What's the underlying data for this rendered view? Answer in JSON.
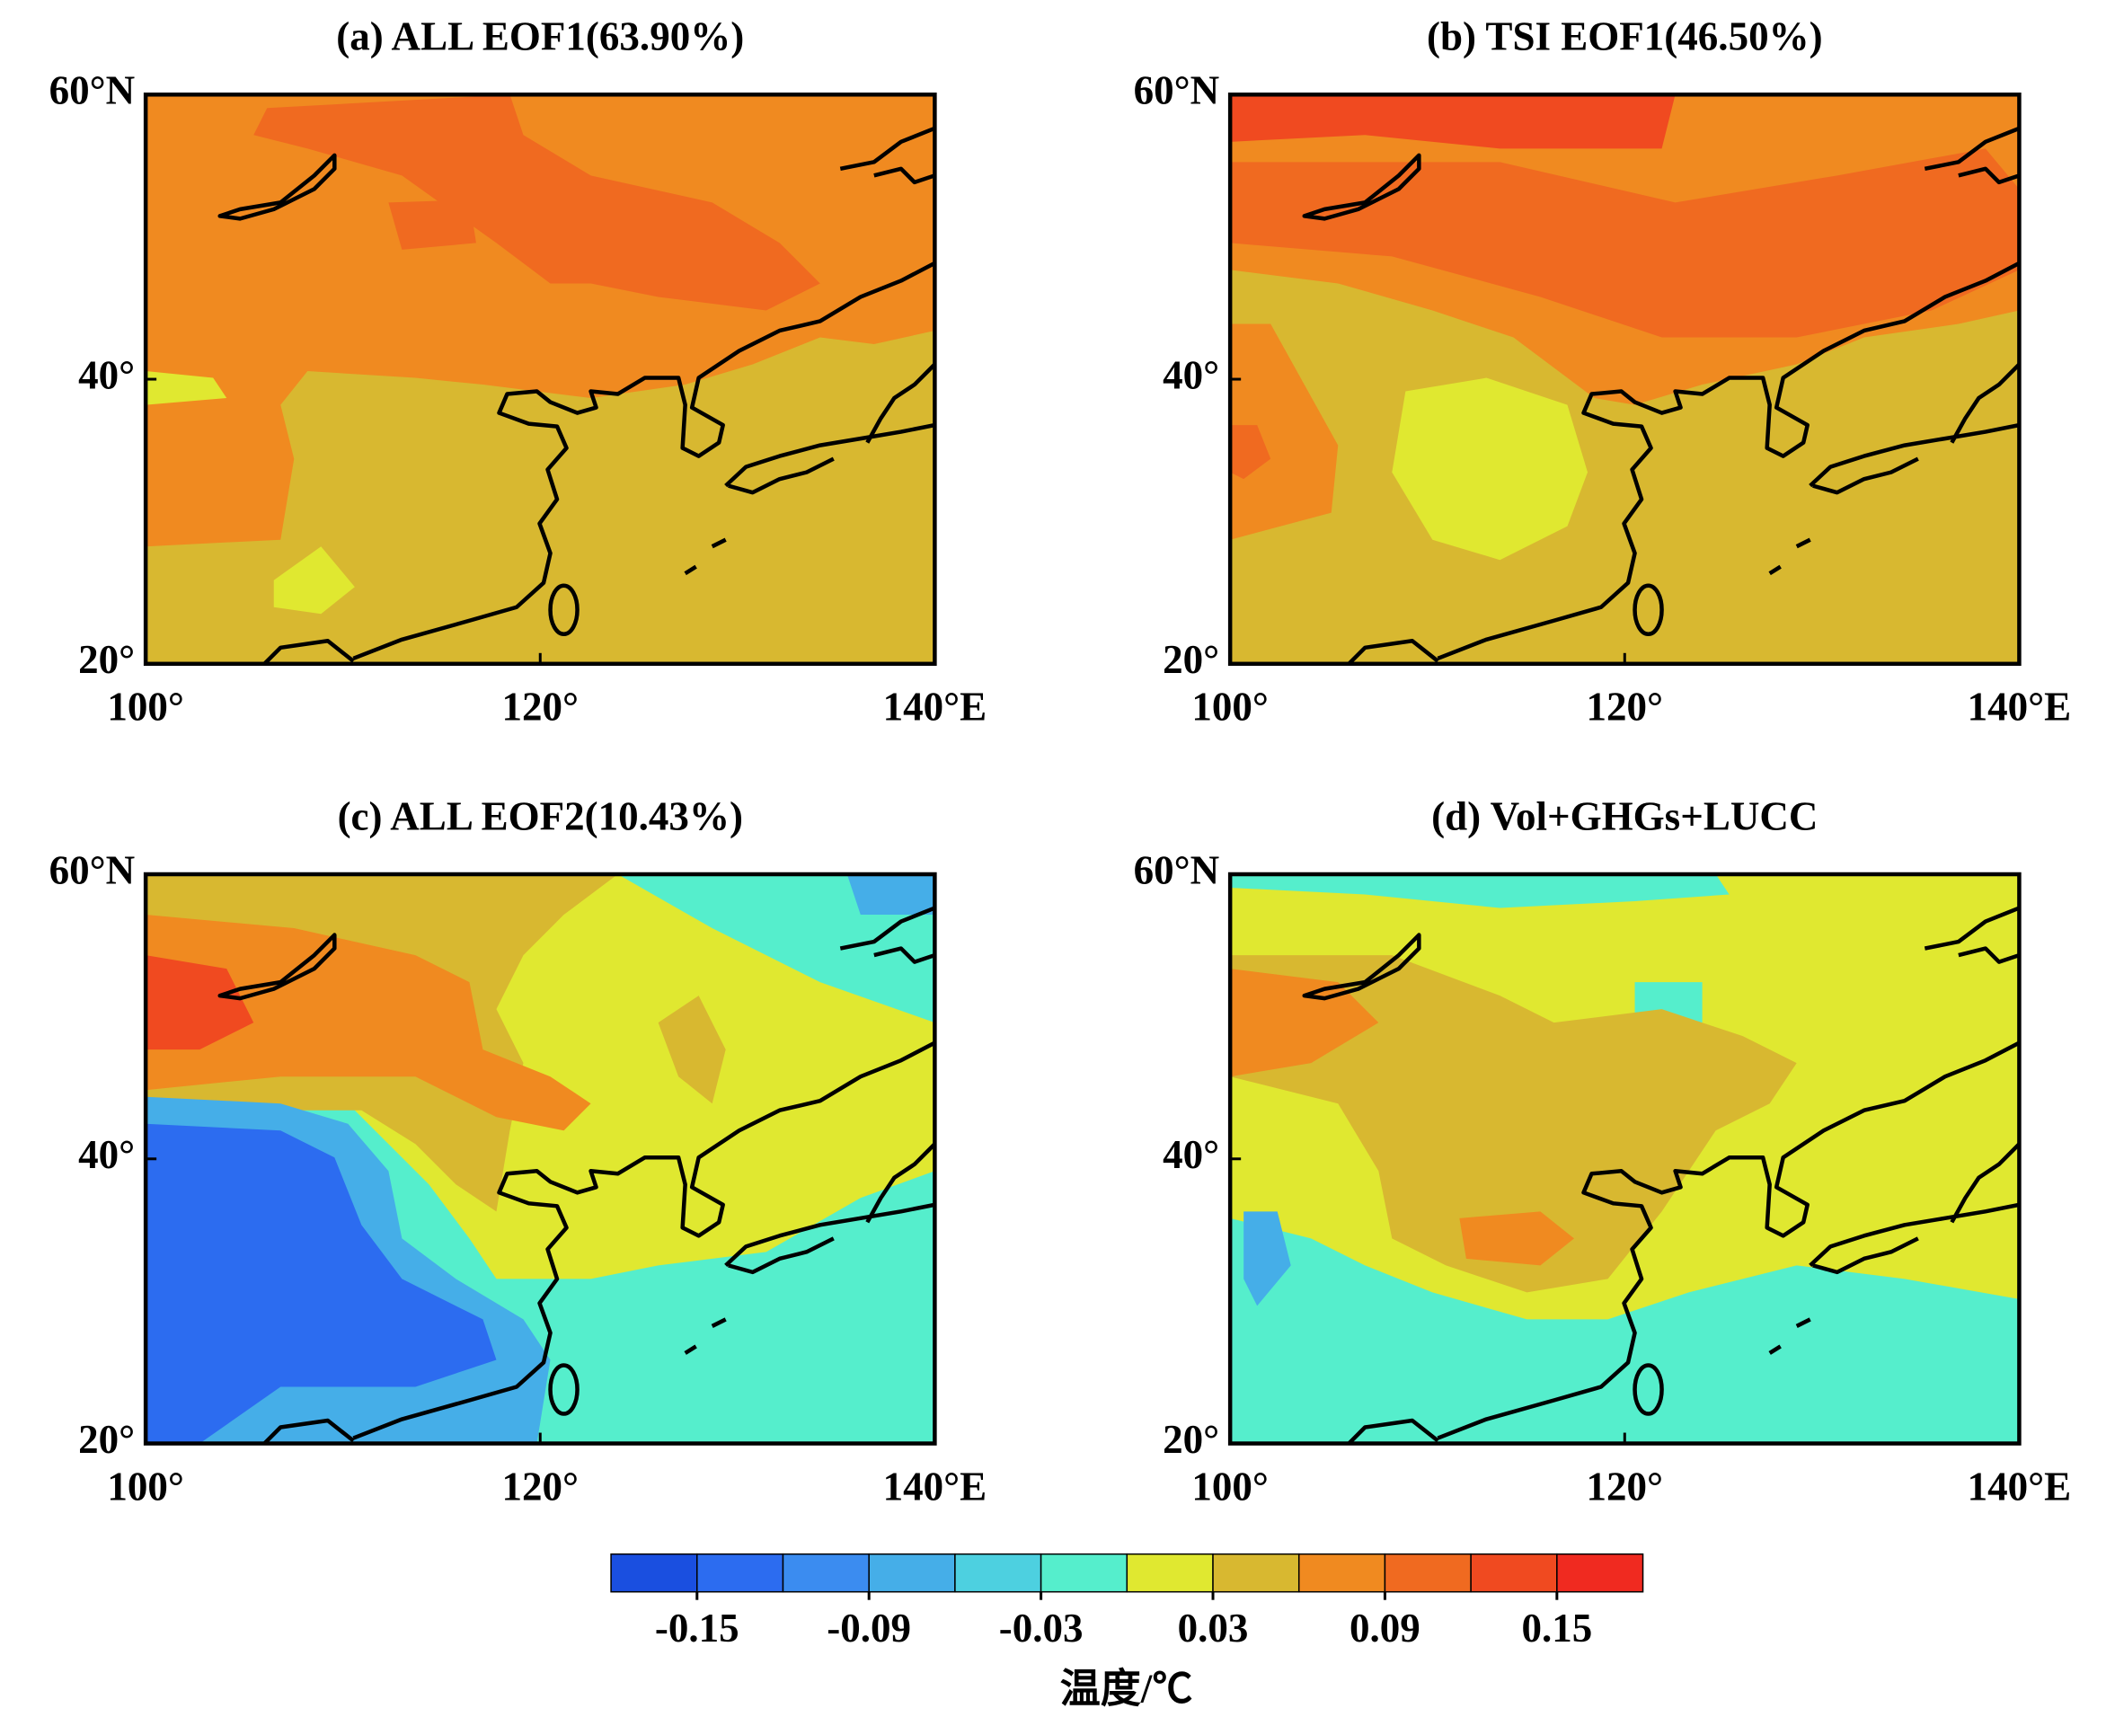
{
  "panels": [
    {
      "title": "(a) ALL EOF1(63.90%)",
      "xlim": [
        100,
        140
      ],
      "ylim": [
        20,
        60
      ],
      "xticks": [
        {
          "value": 100,
          "label": "100°"
        },
        {
          "value": 120,
          "label": "120°"
        },
        {
          "value": 140,
          "label": "140°E"
        }
      ],
      "yticks": [
        {
          "value": 20,
          "label": "20°"
        },
        {
          "value": 40,
          "label": "40°"
        },
        {
          "value": 60,
          "label": "60°N"
        }
      ]
    },
    {
      "title": "(b) TSI EOF1(46.50%)",
      "xlim": [
        100,
        140
      ],
      "ylim": [
        20,
        60
      ],
      "xticks": [
        {
          "value": 100,
          "label": "100°"
        },
        {
          "value": 120,
          "label": "120°"
        },
        {
          "value": 140,
          "label": "140°E"
        }
      ],
      "yticks": [
        {
          "value": 20,
          "label": "20°"
        },
        {
          "value": 40,
          "label": "40°"
        },
        {
          "value": 60,
          "label": "60°N"
        }
      ]
    },
    {
      "title": "(c) ALL EOF2(10.43%)",
      "xlim": [
        100,
        140
      ],
      "ylim": [
        20,
        60
      ],
      "xticks": [
        {
          "value": 100,
          "label": "100°"
        },
        {
          "value": 120,
          "label": "120°"
        },
        {
          "value": 140,
          "label": "140°E"
        }
      ],
      "yticks": [
        {
          "value": 20,
          "label": "20°"
        },
        {
          "value": 40,
          "label": "40°"
        },
        {
          "value": 60,
          "label": "60°N"
        }
      ]
    },
    {
      "title": "(d) Vol+GHGs+LUCC",
      "xlim": [
        100,
        140
      ],
      "ylim": [
        20,
        60
      ],
      "xticks": [
        {
          "value": 100,
          "label": "100°"
        },
        {
          "value": 120,
          "label": "120°"
        },
        {
          "value": 140,
          "label": "140°E"
        }
      ],
      "yticks": [
        {
          "value": 20,
          "label": "20°"
        },
        {
          "value": 40,
          "label": "40°"
        },
        {
          "value": 60,
          "label": "60°N"
        }
      ]
    }
  ],
  "colorbar": {
    "label": "温度/℃",
    "lim": [
      -0.18,
      0.18
    ],
    "colors": [
      "#1a4fe0",
      "#2c6cf0",
      "#3b8cf0",
      "#45aee8",
      "#4dd0e0",
      "#55eecc",
      "#e0e830",
      "#d8b830",
      "#f08a20",
      "#f06a20",
      "#f04a20",
      "#f02a20"
    ],
    "ticks": [
      -0.15,
      -0.09,
      -0.03,
      0.03,
      0.09,
      0.15
    ]
  }
}
